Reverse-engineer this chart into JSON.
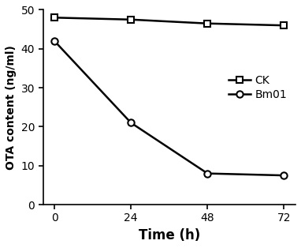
{
  "time": [
    0,
    24,
    48,
    72
  ],
  "CK": [
    48.0,
    47.5,
    46.5,
    46.0
  ],
  "Bm01": [
    42.0,
    21.0,
    8.0,
    7.5
  ],
  "xlabel": "Time (h)",
  "ylabel": "OTA content (ng/ml)",
  "ylim": [
    0,
    50
  ],
  "yticks": [
    0,
    10,
    20,
    30,
    40,
    50
  ],
  "xticks": [
    0,
    24,
    48,
    72
  ],
  "line_color": "#000000",
  "marker_CK": "s",
  "marker_Bm01": "o",
  "marker_size": 6,
  "line_width": 1.8,
  "legend_CK": "CK",
  "legend_Bm01": "Bm01",
  "figsize": [
    3.82,
    3.14
  ],
  "dpi": 100
}
